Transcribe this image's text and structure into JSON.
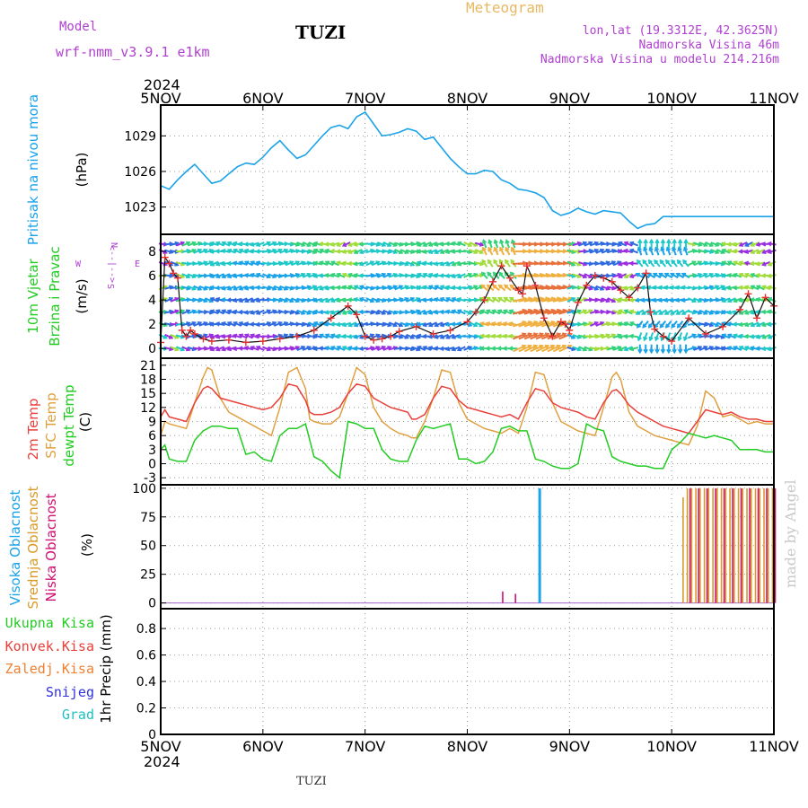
{
  "header": {
    "model_label": "Model",
    "model_name": "wrf-nmm_v3.9.1 e1km",
    "station": "TUZI",
    "meteogram": "Meteogram",
    "lonlat": "lon,lat (19.3312E, 42.3625N)",
    "altitude": "Nadmorska Visina 46m",
    "model_altitude": "Nadmorska Visina u modelu 214.216m",
    "year_top": "2024",
    "year_bottom": "2024",
    "footer": "TUZI",
    "credit": "made by Angel"
  },
  "colors": {
    "pressure": "#1aa3e8",
    "temp2m": "#e8403a",
    "sfc": "#e0a040",
    "dewpt": "#22cc22",
    "high_cloud": "#1aa3e8",
    "mid_cloud": "#d99a2a",
    "low_cloud": "#d01070",
    "purple": "#b040d0",
    "meteogram": "#e8b860",
    "rain": "#22cc22",
    "conv": "#e8403a",
    "freezing": "#f08030",
    "snow": "#3030e0",
    "hail": "#20c0c0",
    "credit": "#c8c8c8"
  },
  "labels": {
    "pressure": [
      "Pritisak na nivou mora",
      "(hPa)"
    ],
    "wind": [
      "10m Vjetar",
      "Brzina i Pravac",
      "(m/s)"
    ],
    "wind_legend": [
      "N",
      "W",
      "E",
      "<--|-->",
      "S"
    ],
    "temp": [
      "2m Temp",
      "SFC Temp",
      "dewpt Temp",
      "(C)"
    ],
    "cloud": [
      "Visoka Oblacnost",
      "Srednja Oblacnost",
      "Niska Oblacnost",
      "(%)"
    ],
    "precip": [
      "Ukupna Kisa",
      "Konvek.Kisa",
      "Zaledj.Kisa",
      "Snijeg",
      "Grad",
      "1hr Precip (mm)"
    ]
  },
  "chart_data": [
    {
      "type": "line",
      "panel": "pressure",
      "x_start": "2024-11-05 00:00",
      "x_ticks": [
        "5NOV",
        "6NOV",
        "7NOV",
        "8NOV",
        "9NOV",
        "10NOV",
        "11NOV"
      ],
      "y_ticks": [
        1023,
        1026,
        1029
      ],
      "ylim": [
        1020.7,
        1031.6
      ],
      "series": [
        {
          "name": "Pritisak na nivou mora",
          "x_hours": [
            0,
            2,
            4,
            6,
            8,
            10,
            12,
            14,
            16,
            18,
            20,
            22,
            24,
            26,
            28,
            30,
            32,
            34,
            36,
            38,
            40,
            42,
            44,
            46,
            48,
            50,
            52,
            54,
            56,
            58,
            60,
            62,
            64,
            66,
            68,
            70,
            72,
            74,
            76,
            78,
            80,
            82,
            84,
            86,
            88,
            90,
            92,
            94,
            96,
            98,
            100,
            102,
            104,
            106,
            108,
            110,
            112,
            114,
            116,
            118,
            120,
            122,
            124,
            126,
            128,
            130,
            132,
            134,
            136,
            138,
            140,
            142,
            144
          ],
          "values": [
            1024.8,
            1024.5,
            1025.3,
            1026.0,
            1026.6,
            1025.8,
            1025.0,
            1025.2,
            1025.8,
            1026.4,
            1026.7,
            1026.6,
            1027.2,
            1028.0,
            1028.6,
            1027.8,
            1027.1,
            1027.4,
            1028.2,
            1029.0,
            1029.7,
            1029.9,
            1029.6,
            1030.6,
            1031.0,
            1030.0,
            1029.0,
            1029.1,
            1029.3,
            1029.6,
            1029.4,
            1028.7,
            1028.9,
            1028.0,
            1027.1,
            1026.4,
            1025.8,
            1025.8,
            1026.1,
            1026.0,
            1025.3,
            1025.0,
            1024.5,
            1024.4,
            1024.2,
            1023.8,
            1022.7,
            1022.3,
            1022.5,
            1022.9,
            1022.6,
            1022.4,
            1022.7,
            1022.6,
            1022.5,
            1021.8,
            1021.2,
            1021.5,
            1021.6,
            1022.2,
            1022.2,
            1022.2,
            1022.2,
            1022.2,
            1022.2,
            1022.2,
            1022.2,
            1022.2,
            1022.2,
            1022.2,
            1022.2,
            1022.2,
            1022.2
          ]
        }
      ]
    },
    {
      "type": "line",
      "panel": "wind",
      "x_start": "2024-11-05 00:00",
      "y_ticks": [
        0,
        2,
        4,
        6,
        8
      ],
      "ylim": [
        -0.8,
        9.4
      ],
      "series": [
        {
          "name": "10m Vjetar",
          "x_hours": [
            0,
            1,
            2,
            3,
            4,
            5,
            6,
            7,
            8,
            10,
            12,
            16,
            20,
            24,
            28,
            32,
            36,
            40,
            44,
            46,
            48,
            50,
            52,
            54,
            56,
            60,
            64,
            68,
            72,
            74,
            76,
            78,
            80,
            82,
            84,
            85,
            86,
            88,
            90,
            92,
            94,
            95,
            96,
            98,
            100,
            102,
            104,
            106,
            108,
            110,
            112,
            114,
            115,
            116,
            118,
            120,
            124,
            128,
            132,
            136,
            138,
            140,
            142,
            144
          ],
          "values": [
            0.5,
            7.5,
            7.0,
            6.2,
            5.8,
            1.5,
            1.0,
            1.5,
            1.2,
            0.8,
            0.6,
            0.7,
            0.5,
            0.6,
            0.8,
            1.0,
            1.5,
            2.5,
            3.5,
            2.8,
            1.0,
            0.7,
            0.8,
            1.0,
            1.4,
            1.8,
            1.2,
            1.5,
            2.2,
            3.0,
            4.0,
            5.5,
            6.8,
            5.8,
            4.8,
            4.5,
            6.8,
            5.2,
            2.5,
            1.0,
            2.2,
            2.0,
            1.5,
            3.8,
            5.2,
            6.0,
            5.8,
            5.5,
            4.8,
            4.2,
            5.0,
            6.2,
            3.0,
            1.6,
            1.0,
            0.6,
            2.5,
            1.2,
            1.8,
            3.2,
            4.5,
            2.5,
            4.2,
            3.5
          ]
        }
      ]
    },
    {
      "type": "line",
      "panel": "temperature",
      "x_start": "2024-11-05 00:00",
      "y_ticks": [
        -3,
        0,
        3,
        6,
        9,
        12,
        15,
        18,
        21
      ],
      "ylim": [
        -4.5,
        22.5
      ],
      "series": [
        {
          "name": "2m Temp",
          "x_hours": [
            0,
            1,
            2,
            4,
            6,
            8,
            10,
            11,
            12,
            14,
            16,
            18,
            20,
            22,
            24,
            26,
            28,
            30,
            32,
            34,
            35,
            36,
            38,
            40,
            42,
            44,
            46,
            48,
            50,
            52,
            54,
            56,
            58,
            59,
            60,
            62,
            64,
            66,
            68,
            70,
            72,
            74,
            76,
            78,
            80,
            82,
            83,
            84,
            86,
            88,
            90,
            92,
            94,
            96,
            98,
            100,
            102,
            104,
            106,
            107,
            108,
            110,
            112,
            114,
            116,
            118,
            120,
            122,
            124,
            126,
            128,
            130,
            132,
            134,
            136,
            138,
            140,
            142,
            144
          ],
          "values": [
            10.0,
            11.5,
            10.0,
            9.5,
            9.0,
            13.0,
            16.0,
            16.5,
            16.0,
            14.0,
            13.5,
            13.0,
            12.5,
            12.0,
            11.5,
            12.0,
            14.0,
            17.0,
            16.5,
            13.5,
            11.0,
            10.5,
            10.5,
            11.0,
            12.0,
            15.0,
            17.0,
            16.5,
            14.0,
            13.0,
            12.0,
            11.5,
            11.0,
            9.5,
            9.5,
            10.5,
            14.0,
            16.5,
            16.0,
            13.5,
            12.0,
            11.5,
            11.0,
            10.5,
            10.0,
            10.5,
            10.0,
            9.5,
            13.0,
            16.0,
            15.5,
            13.0,
            12.0,
            11.5,
            11.0,
            10.0,
            9.5,
            13.0,
            15.5,
            15.8,
            15.0,
            12.5,
            11.0,
            10.0,
            9.0,
            8.0,
            7.5,
            7.0,
            6.5,
            9.0,
            11.5,
            11.0,
            10.5,
            11.0,
            10.0,
            9.5,
            9.5,
            9.0,
            9.0
          ]
        },
        {
          "name": "SFC Temp",
          "x_hours": [
            0,
            1,
            2,
            4,
            6,
            8,
            10,
            11,
            12,
            14,
            16,
            18,
            20,
            22,
            24,
            26,
            28,
            30,
            32,
            34,
            35,
            36,
            38,
            40,
            42,
            44,
            46,
            48,
            50,
            52,
            54,
            56,
            58,
            59,
            60,
            62,
            64,
            66,
            68,
            70,
            72,
            74,
            76,
            78,
            80,
            82,
            83,
            84,
            86,
            88,
            90,
            92,
            94,
            96,
            98,
            100,
            102,
            104,
            106,
            107,
            108,
            110,
            112,
            114,
            116,
            118,
            120,
            122,
            124,
            126,
            128,
            130,
            132,
            134,
            136,
            138,
            140,
            142,
            144
          ],
          "values": [
            6.0,
            9.0,
            8.5,
            8.0,
            7.5,
            13.0,
            18.5,
            20.5,
            20.0,
            14.0,
            11.0,
            10.0,
            9.0,
            8.0,
            7.0,
            6.0,
            12.0,
            19.5,
            20.5,
            16.0,
            9.5,
            9.0,
            8.5,
            8.5,
            10.0,
            15.0,
            20.5,
            19.0,
            12.0,
            9.0,
            7.5,
            6.5,
            6.0,
            5.5,
            5.5,
            9.0,
            14.0,
            20.0,
            19.5,
            13.0,
            9.5,
            8.5,
            7.5,
            7.0,
            6.5,
            7.5,
            7.0,
            6.5,
            12.0,
            19.5,
            19.0,
            13.0,
            9.0,
            8.0,
            7.0,
            6.5,
            6.0,
            12.0,
            18.5,
            19.5,
            18.0,
            11.0,
            8.0,
            7.0,
            6.0,
            5.5,
            5.0,
            4.5,
            4.0,
            8.0,
            15.5,
            14.0,
            10.0,
            10.5,
            9.5,
            8.5,
            9.0,
            8.5,
            8.5
          ]
        },
        {
          "name": "dewpt Temp",
          "x_hours": [
            0,
            1,
            2,
            4,
            6,
            8,
            10,
            12,
            14,
            16,
            18,
            20,
            22,
            24,
            26,
            28,
            30,
            32,
            34,
            36,
            38,
            40,
            42,
            44,
            46,
            48,
            50,
            52,
            54,
            56,
            58,
            60,
            62,
            64,
            66,
            68,
            70,
            72,
            74,
            76,
            78,
            80,
            82,
            84,
            86,
            88,
            90,
            92,
            94,
            96,
            98,
            100,
            102,
            104,
            106,
            108,
            110,
            112,
            114,
            116,
            118,
            120,
            122,
            124,
            126,
            128,
            130,
            132,
            134,
            136,
            138,
            140,
            142,
            144
          ],
          "values": [
            3.0,
            4.0,
            1.0,
            0.5,
            0.5,
            5.0,
            7.0,
            8.0,
            8.0,
            7.5,
            7.5,
            2.0,
            2.5,
            1.0,
            0.5,
            6.0,
            7.5,
            7.5,
            8.5,
            1.5,
            0.5,
            -1.5,
            -3.0,
            9.0,
            8.5,
            7.5,
            7.5,
            3.0,
            1.0,
            0.5,
            0.5,
            5.0,
            8.0,
            7.5,
            8.0,
            8.5,
            1.0,
            1.0,
            0.0,
            0.5,
            2.5,
            7.5,
            8.0,
            7.0,
            7.0,
            1.0,
            0.5,
            -0.5,
            -1.0,
            -1.0,
            0.0,
            8.5,
            7.5,
            7.0,
            1.5,
            0.5,
            0.0,
            -0.5,
            -0.5,
            -1.0,
            -1.0,
            3.0,
            4.5,
            6.5,
            6.0,
            5.5,
            6.0,
            5.5,
            5.0,
            3.0,
            3.0,
            3.0,
            2.5,
            2.5
          ]
        }
      ]
    },
    {
      "type": "bar",
      "panel": "clouds",
      "x_start": "2024-11-05 00:00",
      "y_ticks": [
        0,
        25,
        50,
        75,
        100
      ],
      "ylim": [
        -5,
        103
      ],
      "series": [
        {
          "name": "Visoka Oblacnost",
          "x_hours": [
            89
          ],
          "values": [
            100
          ]
        },
        {
          "name": "Srednja Oblacnost",
          "x_hours": [
            123,
            124,
            125,
            126,
            127,
            128,
            129,
            130,
            131,
            132,
            133,
            134,
            135,
            136,
            137,
            138,
            139,
            140,
            141,
            142,
            143,
            144
          ],
          "values": [
            92,
            100,
            100,
            100,
            100,
            100,
            100,
            100,
            100,
            100,
            100,
            100,
            100,
            100,
            100,
            100,
            100,
            100,
            100,
            100,
            100,
            100
          ]
        },
        {
          "name": "Niska Oblacnost",
          "x_hours": [
            80,
            83,
            124,
            126,
            128,
            130,
            132,
            134,
            136,
            138,
            140,
            142,
            144
          ],
          "values": [
            10,
            8,
            100,
            100,
            100,
            100,
            100,
            100,
            100,
            100,
            100,
            100,
            100
          ]
        }
      ]
    },
    {
      "type": "bar",
      "panel": "precipitation",
      "x_start": "2024-11-05 00:00",
      "y_ticks": [
        0,
        0.2,
        0.4,
        0.6,
        0.8
      ],
      "ylim": [
        0,
        0.95
      ],
      "series": [
        {
          "name": "Ukupna Kisa",
          "values": []
        },
        {
          "name": "Konvek.Kisa",
          "values": []
        },
        {
          "name": "Zaledj.Kisa",
          "values": []
        },
        {
          "name": "Snijeg",
          "values": []
        },
        {
          "name": "Grad",
          "values": []
        }
      ]
    }
  ]
}
